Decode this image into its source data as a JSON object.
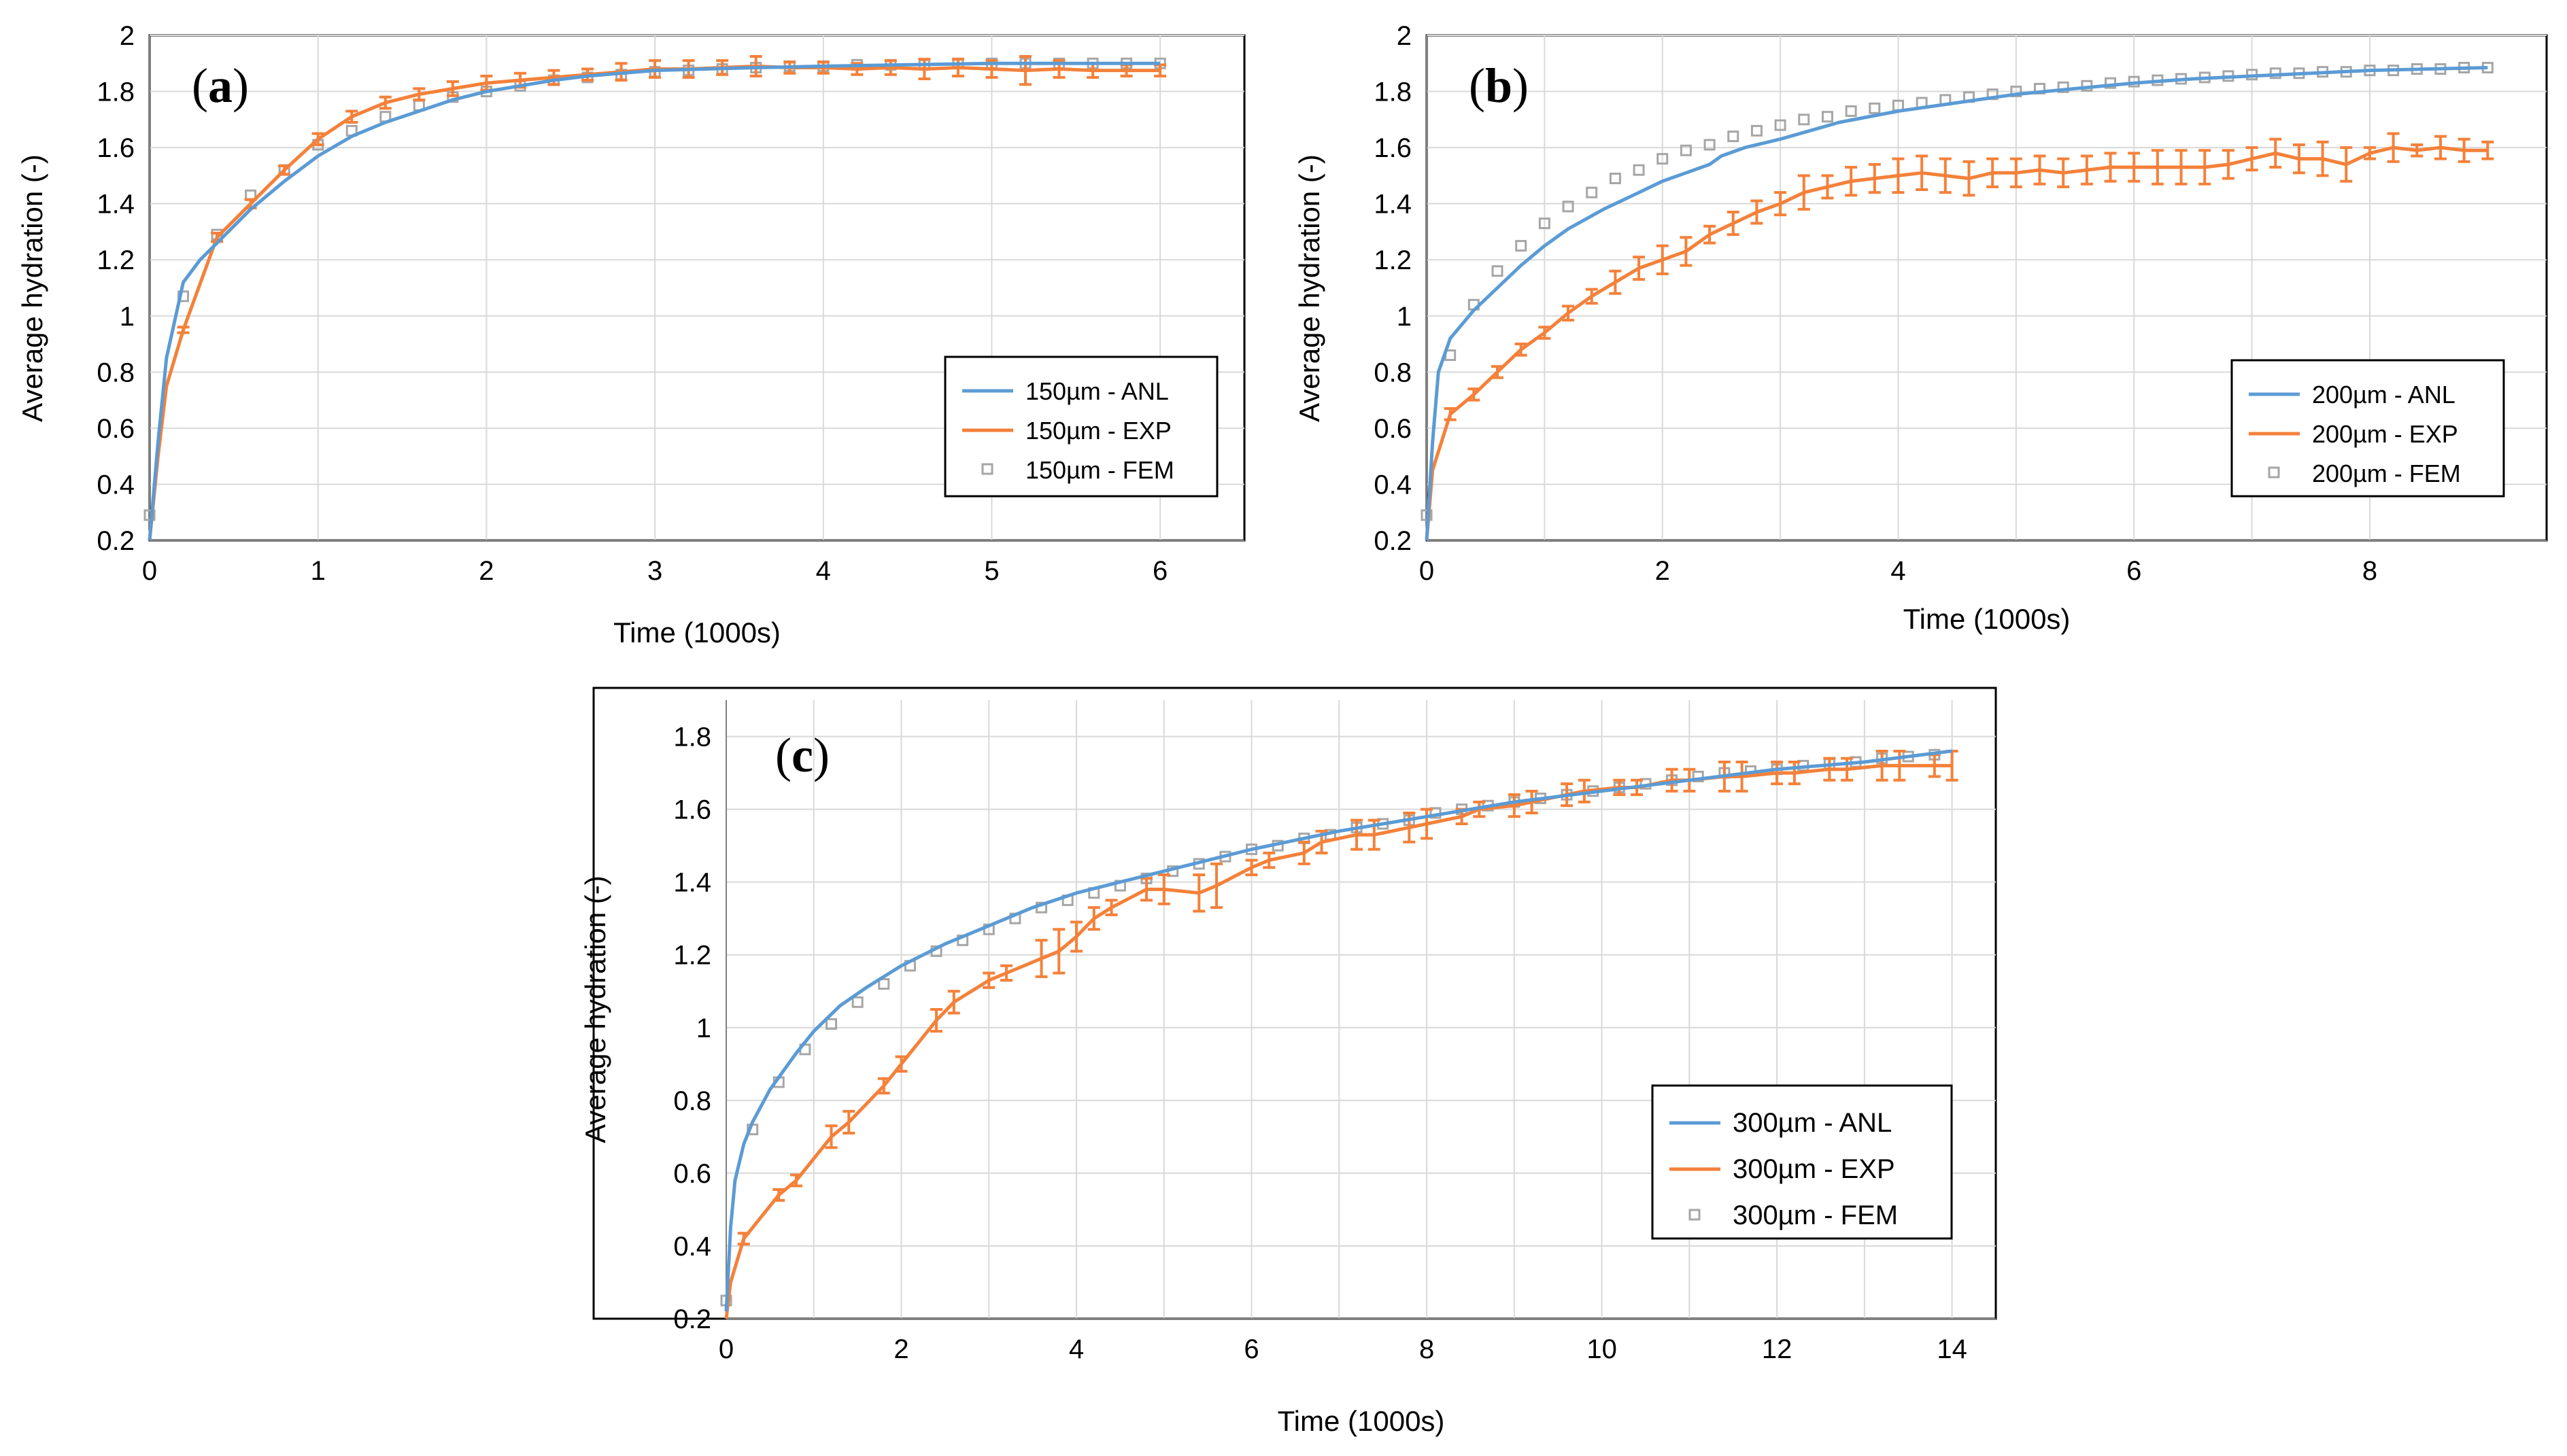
{
  "colors": {
    "anl": "#5b9bd5",
    "exp": "#f4813a",
    "fem": "#a6a6a6",
    "grid": "#d9d9d9",
    "frame": "#000000"
  },
  "chart_data": [
    {
      "type": "line",
      "panel": "(a)",
      "panel_letter": "a",
      "xlabel": "Time (1000s)",
      "ylabel": "Average hydration (-)",
      "xlim": [
        0,
        6.5
      ],
      "ylim": [
        0.2,
        2
      ],
      "x_ticks": [
        0,
        1,
        2,
        3,
        4,
        5,
        6
      ],
      "y_ticks": [
        0.2,
        0.4,
        0.6,
        0.8,
        1,
        1.2,
        1.4,
        1.6,
        1.8,
        2
      ],
      "x_tick_labels": [
        "0",
        "1",
        "2",
        "3",
        "4",
        "5",
        "6"
      ],
      "y_tick_labels": [
        "0.2",
        "0.4",
        "0.6",
        "0.8",
        "1",
        "1.2",
        "1.4",
        "1.6",
        "1.8",
        "2"
      ],
      "legend_position": "center-right",
      "legend": [
        "150µm - ANL",
        "150µm - EXP",
        "150µm - FEM"
      ],
      "series": [
        {
          "name": "150µm - ANL",
          "kind": "line",
          "x": [
            0,
            0.05,
            0.1,
            0.2,
            0.3,
            0.4,
            0.6,
            0.8,
            1,
            1.2,
            1.4,
            1.6,
            1.8,
            2,
            2.2,
            2.4,
            2.6,
            2.8,
            3,
            3.3,
            3.6,
            4,
            4.5,
            5,
            5.5,
            6
          ],
          "y": [
            0.2,
            0.55,
            0.85,
            1.12,
            1.2,
            1.26,
            1.38,
            1.48,
            1.57,
            1.64,
            1.69,
            1.73,
            1.77,
            1.8,
            1.82,
            1.84,
            1.855,
            1.865,
            1.875,
            1.88,
            1.885,
            1.89,
            1.895,
            1.9,
            1.9,
            1.9
          ]
        },
        {
          "name": "150µm - EXP",
          "kind": "errorbar",
          "x": [
            0,
            0.05,
            0.1,
            0.2,
            0.4,
            0.6,
            0.8,
            1,
            1.2,
            1.4,
            1.6,
            1.8,
            2,
            2.2,
            2.4,
            2.6,
            2.8,
            3,
            3.2,
            3.4,
            3.6,
            3.8,
            4,
            4.2,
            4.4,
            4.6,
            4.8,
            5,
            5.2,
            5.4,
            5.6,
            5.8,
            6
          ],
          "y": [
            0.2,
            0.5,
            0.75,
            0.95,
            1.28,
            1.4,
            1.52,
            1.63,
            1.71,
            1.76,
            1.79,
            1.81,
            1.83,
            1.84,
            1.85,
            1.86,
            1.87,
            1.88,
            1.88,
            1.885,
            1.89,
            1.885,
            1.885,
            1.88,
            1.885,
            1.88,
            1.885,
            1.88,
            1.875,
            1.88,
            1.875,
            1.875,
            1.875
          ],
          "err": [
            0,
            0,
            0,
            0.01,
            0.015,
            0.015,
            0.015,
            0.02,
            0.02,
            0.02,
            0.02,
            0.025,
            0.025,
            0.025,
            0.025,
            0.02,
            0.03,
            0.03,
            0.03,
            0.025,
            0.035,
            0.02,
            0.02,
            0.02,
            0.025,
            0.035,
            0.03,
            0.03,
            0.05,
            0.03,
            0.025,
            0.02,
            0.02
          ]
        },
        {
          "name": "150µm - FEM",
          "kind": "marker",
          "x": [
            0,
            0.2,
            0.4,
            0.6,
            0.8,
            1,
            1.2,
            1.4,
            1.6,
            1.8,
            2,
            2.2,
            2.4,
            2.6,
            2.8,
            3,
            3.2,
            3.4,
            3.6,
            3.8,
            4,
            4.2,
            4.4,
            4.6,
            4.8,
            5,
            5.2,
            5.4,
            5.6,
            5.8,
            6
          ],
          "y": [
            0.29,
            1.07,
            1.29,
            1.43,
            1.52,
            1.61,
            1.66,
            1.71,
            1.75,
            1.78,
            1.8,
            1.82,
            1.84,
            1.85,
            1.86,
            1.87,
            1.875,
            1.88,
            1.885,
            1.89,
            1.89,
            1.895,
            1.895,
            1.895,
            1.9,
            1.9,
            1.9,
            1.9,
            1.9,
            1.9,
            1.9
          ]
        }
      ]
    },
    {
      "type": "line",
      "panel": "(b)",
      "panel_letter": "b",
      "xlabel": "Time (1000s)",
      "ylabel": "Average hydration (-)",
      "xlim": [
        0,
        9.5
      ],
      "ylim": [
        0.2,
        2
      ],
      "x_ticks": [
        0,
        2,
        4,
        6,
        8
      ],
      "y_ticks": [
        0.2,
        0.4,
        0.6,
        0.8,
        1,
        1.2,
        1.4,
        1.6,
        1.8,
        2
      ],
      "x_tick_labels": [
        "0",
        "2",
        "4",
        "6",
        "8"
      ],
      "y_tick_labels": [
        "0.2",
        "0.4",
        "0.6",
        "0.8",
        "1",
        "1.2",
        "1.4",
        "1.6",
        "1.8",
        "2"
      ],
      "legend_position": "center-right",
      "legend": [
        "200µm - ANL",
        "200µm - EXP",
        "200µm - FEM"
      ],
      "series": [
        {
          "name": "200µm - ANL",
          "kind": "line",
          "x": [
            0,
            0.05,
            0.1,
            0.2,
            0.4,
            0.6,
            0.8,
            1,
            1.2,
            1.5,
            1.8,
            2,
            2.2,
            2.4,
            2.5,
            2.7,
            3,
            3.5,
            4,
            4.5,
            5,
            5.5,
            6,
            6.5,
            7,
            7.5,
            8,
            8.5,
            9
          ],
          "y": [
            0.2,
            0.55,
            0.8,
            0.92,
            1.02,
            1.1,
            1.18,
            1.25,
            1.31,
            1.38,
            1.44,
            1.48,
            1.51,
            1.54,
            1.57,
            1.6,
            1.63,
            1.69,
            1.73,
            1.76,
            1.79,
            1.81,
            1.83,
            1.845,
            1.855,
            1.865,
            1.875,
            1.88,
            1.885
          ]
        },
        {
          "name": "200µm - EXP",
          "kind": "errorbar",
          "x": [
            0,
            0.05,
            0.2,
            0.4,
            0.6,
            0.8,
            1,
            1.2,
            1.4,
            1.6,
            1.8,
            2,
            2.2,
            2.4,
            2.6,
            2.8,
            3,
            3.2,
            3.4,
            3.6,
            3.8,
            4,
            4.2,
            4.4,
            4.6,
            4.8,
            5,
            5.2,
            5.4,
            5.6,
            5.8,
            6,
            6.2,
            6.4,
            6.6,
            6.8,
            7,
            7.2,
            7.4,
            7.6,
            7.8,
            8,
            8.2,
            8.4,
            8.6,
            8.8,
            9
          ],
          "y": [
            0.2,
            0.45,
            0.65,
            0.72,
            0.8,
            0.88,
            0.94,
            1.01,
            1.07,
            1.12,
            1.17,
            1.2,
            1.23,
            1.29,
            1.33,
            1.37,
            1.4,
            1.44,
            1.46,
            1.48,
            1.49,
            1.5,
            1.51,
            1.5,
            1.49,
            1.51,
            1.51,
            1.52,
            1.51,
            1.52,
            1.53,
            1.53,
            1.53,
            1.53,
            1.53,
            1.54,
            1.56,
            1.58,
            1.56,
            1.56,
            1.54,
            1.58,
            1.6,
            1.59,
            1.6,
            1.59,
            1.59
          ],
          "err": [
            0,
            0,
            0.02,
            0.02,
            0.02,
            0.02,
            0.02,
            0.025,
            0.025,
            0.04,
            0.04,
            0.05,
            0.05,
            0.03,
            0.04,
            0.04,
            0.04,
            0.06,
            0.04,
            0.05,
            0.05,
            0.06,
            0.06,
            0.06,
            0.06,
            0.05,
            0.05,
            0.05,
            0.05,
            0.05,
            0.05,
            0.05,
            0.06,
            0.06,
            0.06,
            0.05,
            0.04,
            0.05,
            0.05,
            0.06,
            0.06,
            0.02,
            0.05,
            0.02,
            0.04,
            0.04,
            0.03
          ]
        },
        {
          "name": "200µm - FEM",
          "kind": "marker",
          "x": [
            0,
            0.2,
            0.4,
            0.6,
            0.8,
            1,
            1.2,
            1.4,
            1.6,
            1.8,
            2,
            2.2,
            2.4,
            2.6,
            2.8,
            3,
            3.2,
            3.4,
            3.6,
            3.8,
            4,
            4.2,
            4.4,
            4.6,
            4.8,
            5,
            5.2,
            5.4,
            5.6,
            5.8,
            6,
            6.2,
            6.4,
            6.6,
            6.8,
            7,
            7.2,
            7.4,
            7.6,
            7.8,
            8,
            8.2,
            8.4,
            8.6,
            8.8,
            9
          ],
          "y": [
            0.29,
            0.86,
            1.04,
            1.16,
            1.25,
            1.33,
            1.39,
            1.44,
            1.49,
            1.52,
            1.56,
            1.59,
            1.61,
            1.64,
            1.66,
            1.68,
            1.7,
            1.71,
            1.73,
            1.74,
            1.75,
            1.76,
            1.77,
            1.78,
            1.79,
            1.8,
            1.81,
            1.815,
            1.82,
            1.83,
            1.835,
            1.84,
            1.845,
            1.85,
            1.855,
            1.86,
            1.865,
            1.865,
            1.87,
            1.87,
            1.875,
            1.875,
            1.88,
            1.88,
            1.885,
            1.885
          ]
        }
      ]
    },
    {
      "type": "line",
      "panel": "(c)",
      "panel_letter": "c",
      "xlabel": "Time (1000s)",
      "ylabel": "Average hydration (-)",
      "xlim": [
        0,
        14.5
      ],
      "ylim": [
        0.2,
        1.9
      ],
      "x_ticks": [
        0,
        2,
        4,
        6,
        8,
        10,
        12,
        14
      ],
      "y_ticks": [
        0.2,
        0.4,
        0.6,
        0.8,
        1,
        1.2,
        1.4,
        1.6,
        1.8
      ],
      "x_tick_labels": [
        "0",
        "2",
        "4",
        "6",
        "8",
        "10",
        "12",
        "14"
      ],
      "y_tick_labels": [
        "0.2",
        "0.4",
        "0.6",
        "0.8",
        "1",
        "1.2",
        "1.4",
        "1.6",
        "1.8"
      ],
      "legend_position": "lower-right",
      "legend": [
        "300µm - ANL",
        "300µm - EXP",
        "300µm - FEM"
      ],
      "series": [
        {
          "name": "300µm - ANL",
          "kind": "line",
          "x": [
            0,
            0.05,
            0.1,
            0.2,
            0.3,
            0.5,
            0.8,
            1,
            1.3,
            1.6,
            2,
            2.5,
            3,
            3.5,
            4,
            4.5,
            5,
            6,
            7,
            8,
            9,
            10,
            11,
            12,
            13,
            14
          ],
          "y": [
            0.22,
            0.45,
            0.58,
            0.68,
            0.74,
            0.83,
            0.93,
            0.99,
            1.06,
            1.11,
            1.17,
            1.23,
            1.28,
            1.33,
            1.37,
            1.4,
            1.43,
            1.49,
            1.54,
            1.58,
            1.62,
            1.65,
            1.68,
            1.71,
            1.73,
            1.76
          ]
        },
        {
          "name": "300µm - EXP",
          "kind": "errorbar",
          "x": [
            0,
            0.05,
            0.2,
            0.6,
            0.8,
            1.2,
            1.4,
            1.8,
            2,
            2.4,
            2.6,
            3,
            3.2,
            3.6,
            3.8,
            4,
            4.2,
            4.4,
            4.8,
            5,
            5.4,
            5.6,
            6,
            6.2,
            6.6,
            6.8,
            7.2,
            7.4,
            7.8,
            8,
            8.4,
            8.6,
            9,
            9.2,
            9.6,
            9.8,
            10.2,
            10.4,
            10.8,
            11,
            11.4,
            11.6,
            12,
            12.2,
            12.6,
            12.8,
            13.2,
            13.4,
            13.8,
            14
          ],
          "y": [
            0.2,
            0.3,
            0.42,
            0.54,
            0.58,
            0.7,
            0.74,
            0.84,
            0.9,
            1.02,
            1.07,
            1.13,
            1.15,
            1.19,
            1.21,
            1.25,
            1.3,
            1.33,
            1.38,
            1.38,
            1.37,
            1.39,
            1.44,
            1.46,
            1.48,
            1.51,
            1.53,
            1.53,
            1.55,
            1.56,
            1.58,
            1.6,
            1.61,
            1.62,
            1.64,
            1.65,
            1.66,
            1.66,
            1.68,
            1.68,
            1.69,
            1.69,
            1.7,
            1.7,
            1.71,
            1.71,
            1.72,
            1.72,
            1.72,
            1.72
          ],
          "err": [
            0,
            0,
            0.015,
            0.015,
            0.015,
            0.03,
            0.03,
            0.02,
            0.02,
            0.03,
            0.03,
            0.02,
            0.02,
            0.05,
            0.06,
            0.04,
            0.03,
            0.02,
            0.03,
            0.04,
            0.05,
            0.06,
            0.02,
            0.02,
            0.03,
            0.03,
            0.04,
            0.04,
            0.04,
            0.04,
            0.02,
            0.02,
            0.03,
            0.03,
            0.03,
            0.03,
            0.02,
            0.02,
            0.03,
            0.03,
            0.04,
            0.04,
            0.03,
            0.03,
            0.03,
            0.03,
            0.04,
            0.04,
            0.03,
            0.04
          ]
        },
        {
          "name": "300µm - FEM",
          "kind": "marker",
          "x": [
            0,
            0.3,
            0.6,
            0.9,
            1.2,
            1.5,
            1.8,
            2.1,
            2.4,
            2.7,
            3,
            3.3,
            3.6,
            3.9,
            4.2,
            4.5,
            4.8,
            5.1,
            5.4,
            5.7,
            6,
            6.3,
            6.6,
            6.9,
            7.2,
            7.5,
            7.8,
            8.1,
            8.4,
            8.7,
            9,
            9.3,
            9.6,
            9.9,
            10.2,
            10.5,
            10.8,
            11.1,
            11.4,
            11.7,
            12,
            12.3,
            12.6,
            12.9,
            13.2,
            13.5,
            13.8
          ],
          "y": [
            0.25,
            0.72,
            0.85,
            0.94,
            1.01,
            1.07,
            1.12,
            1.17,
            1.21,
            1.24,
            1.27,
            1.3,
            1.33,
            1.35,
            1.37,
            1.39,
            1.41,
            1.43,
            1.45,
            1.47,
            1.49,
            1.5,
            1.52,
            1.53,
            1.55,
            1.56,
            1.57,
            1.59,
            1.6,
            1.61,
            1.62,
            1.63,
            1.64,
            1.65,
            1.66,
            1.67,
            1.68,
            1.69,
            1.7,
            1.705,
            1.71,
            1.72,
            1.725,
            1.73,
            1.74,
            1.745,
            1.75
          ]
        }
      ]
    }
  ]
}
